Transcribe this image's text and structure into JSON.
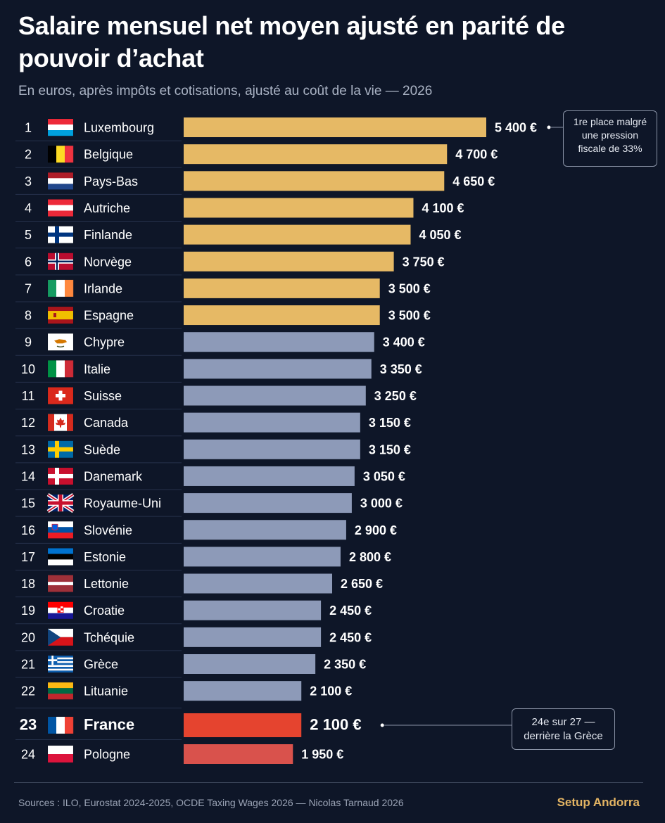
{
  "header": {
    "title": "Salaire mensuel net moyen ajusté en parité de pouvoir d’achat",
    "subtitle": "En euros, après impôts et cotisations, ajusté au coût de la vie — 2026"
  },
  "colors": {
    "background": "#0e1628",
    "top8": "#e6b965",
    "others": "#8d9ab8",
    "france": "#e5442f",
    "pologne": "#d9524c",
    "brand": "#e3b463"
  },
  "chart_data": {
    "type": "bar",
    "orientation": "horizontal",
    "unit": "€",
    "ranks": [
      "1",
      "2",
      "3",
      "4",
      "5",
      "6",
      "7",
      "8",
      "9",
      "10",
      "11",
      "12",
      "13",
      "14",
      "15",
      "16",
      "17",
      "18",
      "19",
      "20",
      "21",
      "22",
      "23",
      "24"
    ],
    "categories": [
      "Luxembourg",
      "Belgique",
      "Pays-Bas",
      "Autriche",
      "Finlande",
      "Norvège",
      "Irlande",
      "Espagne",
      "Chypre",
      "Italie",
      "Suisse",
      "Canada",
      "Suède",
      "Danemark",
      "Royaume-Uni",
      "Slovénie",
      "Estonie",
      "Lettonie",
      "Croatie",
      "Tchéquie",
      "Grèce",
      "Lituanie",
      "France",
      "Pologne"
    ],
    "values": [
      5400,
      4700,
      4650,
      4100,
      4050,
      3750,
      3500,
      3500,
      3400,
      3350,
      3250,
      3150,
      3150,
      3050,
      3000,
      2900,
      2800,
      2650,
      2450,
      2450,
      2350,
      2100,
      2100,
      1950
    ],
    "value_labels": [
      "5 400 €",
      "4 700 €",
      "4 650 €",
      "4 100 €",
      "4 050 €",
      "3 750 €",
      "3 500 €",
      "3 500 €",
      "3 400 €",
      "3 350 €",
      "3 250 €",
      "3 150 €",
      "3 150 €",
      "3 050 €",
      "3 000 €",
      "2 900 €",
      "2 800 €",
      "2 650 €",
      "2 450 €",
      "2 450 €",
      "2 350 €",
      "2 100 €",
      "2 100 €",
      "1 950 €"
    ],
    "flags": [
      "flag-luxembourg-icon",
      "flag-belgium-icon",
      "flag-netherlands-icon",
      "flag-austria-icon",
      "flag-finland-icon",
      "flag-norway-icon",
      "flag-ireland-icon",
      "flag-spain-icon",
      "flag-cyprus-icon",
      "flag-italy-icon",
      "flag-switzerland-icon",
      "flag-canada-icon",
      "flag-sweden-icon",
      "flag-denmark-icon",
      "flag-uk-icon",
      "flag-slovenia-icon",
      "flag-estonia-icon",
      "flag-latvia-icon",
      "flag-croatia-icon",
      "flag-czechia-icon",
      "flag-greece-icon",
      "flag-lithuania-icon",
      "flag-france-icon",
      "flag-poland-icon"
    ],
    "highlight": "France",
    "grid": false,
    "annotations": [
      {
        "target": "Luxembourg",
        "lines": [
          "1re place malgré",
          "une pression",
          "fiscale de 33%"
        ]
      },
      {
        "target": "France",
        "lines": [
          "24e sur 27 —",
          "derrière la Grèce"
        ]
      }
    ]
  },
  "footer": {
    "sources": "Sources : ILO, Eurostat 2024-2025, OCDE Taxing Wages 2026 — Nicolas Tarnaud 2026",
    "brand": "Setup Andorra"
  }
}
